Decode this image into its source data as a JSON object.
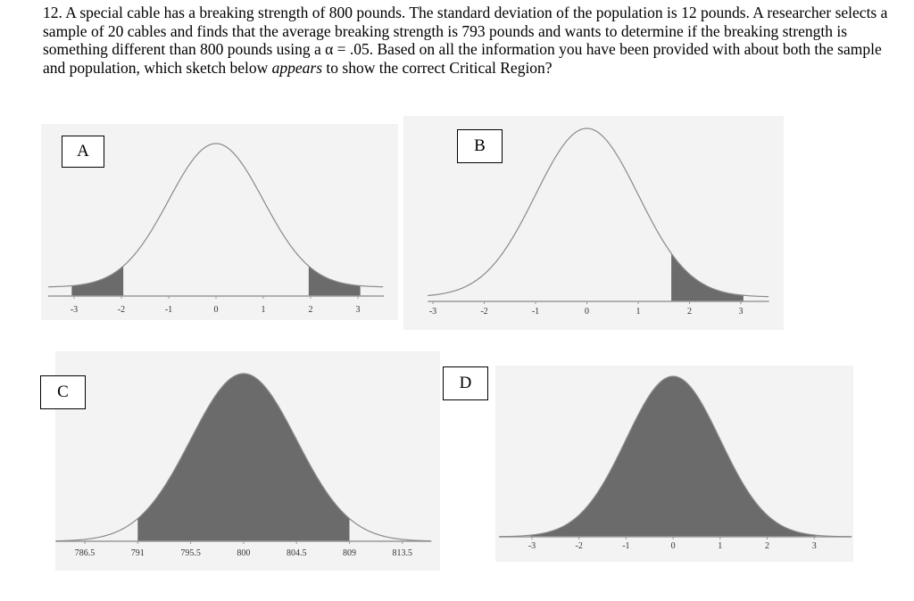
{
  "question": {
    "number": "12.",
    "text_before": " A special cable has a breaking strength of 800 pounds. The standard deviation of the population is 12 pounds. A researcher selects a sample of 20 cables and finds that the average breaking strength is 793 pounds and wants to determine if the breaking strength  is something different than 800 pounds using a α = .05. Based on all the information you have been provided with about both the sample and population, which sketch below ",
    "emphasis": "appears",
    "text_after": " to show the correct Critical Region?"
  },
  "options": [
    {
      "label": "A",
      "shading": "two-tailed",
      "cutoffs": [
        -1.96,
        1.96
      ],
      "ticks": [
        "-3",
        "-2",
        "-1",
        "0",
        "1",
        "2",
        "3"
      ]
    },
    {
      "label": "B",
      "shading": "right-tailed",
      "cutoffs": [
        1.645
      ],
      "ticks": [
        "-3",
        "-2",
        "-1",
        "0",
        "1",
        "2",
        "3"
      ]
    },
    {
      "label": "C",
      "shading": "middle",
      "cutoffs": [
        791,
        809
      ],
      "ticks": [
        "786.5",
        "791",
        "795.5",
        "800",
        "804.5",
        "809",
        "813.5"
      ]
    },
    {
      "label": "D",
      "shading": "full",
      "cutoffs": [],
      "ticks": [
        "-3",
        "-2",
        "-1",
        "0",
        "1",
        "2",
        "3"
      ]
    }
  ],
  "colors": {
    "shade": "#6b6b6b",
    "curve": "#8a8a8a",
    "panel_bg": "#f3f3f3",
    "axis": "#9a9a9a"
  }
}
